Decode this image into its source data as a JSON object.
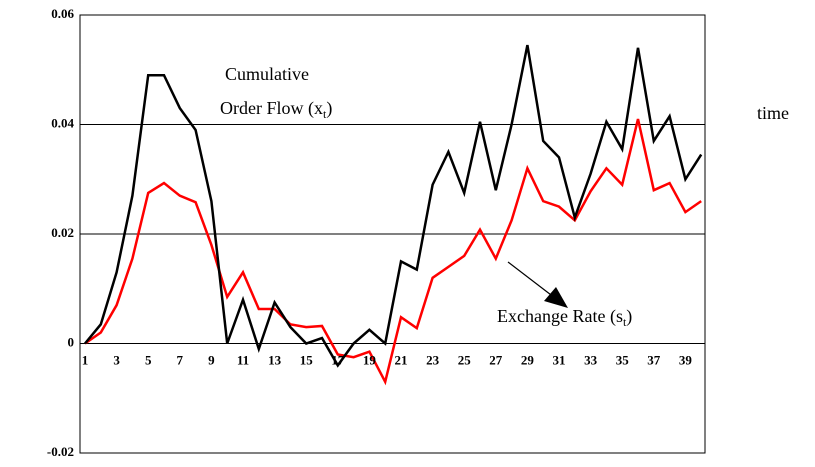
{
  "chart_data": {
    "type": "line",
    "x_label": "time",
    "annotations": {
      "order_flow": [
        "Cumulative",
        "Order Flow (x",
        "t",
        ")"
      ],
      "exchange_rate": [
        "Exchange Rate (s",
        "t",
        ")"
      ]
    },
    "categories": [
      1,
      null,
      3,
      null,
      5,
      null,
      7,
      null,
      9,
      null,
      11,
      null,
      13,
      null,
      15,
      null,
      17,
      null,
      19,
      null,
      21,
      null,
      23,
      null,
      25,
      null,
      27,
      null,
      29,
      null,
      31,
      null,
      33,
      null,
      35,
      null,
      37,
      null,
      39,
      null
    ],
    "series": [
      {
        "color": "#000000",
        "values": [
          0,
          0.0035,
          0.013,
          0.027,
          0.049,
          0.049,
          0.043,
          0.039,
          0.026,
          0,
          0.008,
          -0.001,
          0.0075,
          0.003,
          0,
          0.001,
          -0.004,
          0,
          0.0025,
          0,
          0.015,
          0.0135,
          0.029,
          0.035,
          0.0275,
          0.0405,
          0.028,
          0.04,
          0.0545,
          0.037,
          0.034,
          0.023,
          0.031,
          0.0405,
          0.0355,
          0.054,
          0.037,
          0.0415,
          0.03,
          0.0345
        ]
      },
      {
        "color": "#ff0000",
        "values": [
          0,
          0.002,
          0.007,
          0.0155,
          0.0275,
          0.0293,
          0.027,
          0.0258,
          0.018,
          0.0085,
          0.013,
          0.0063,
          0.0063,
          0.0035,
          0.003,
          0.0032,
          -0.002,
          -0.0025,
          -0.0015,
          -0.007,
          0.0048,
          0.0028,
          0.012,
          0.014,
          0.016,
          0.0208,
          0.0155,
          0.0225,
          0.032,
          0.026,
          0.025,
          0.0225,
          0.0278,
          0.032,
          0.029,
          0.041,
          0.028,
          0.0293,
          0.024,
          0.026
        ]
      }
    ],
    "ylim": [
      -0.02,
      0.06
    ],
    "yticks": [
      -0.02,
      0,
      0.02,
      0.04,
      0.06
    ],
    "grid": true
  }
}
